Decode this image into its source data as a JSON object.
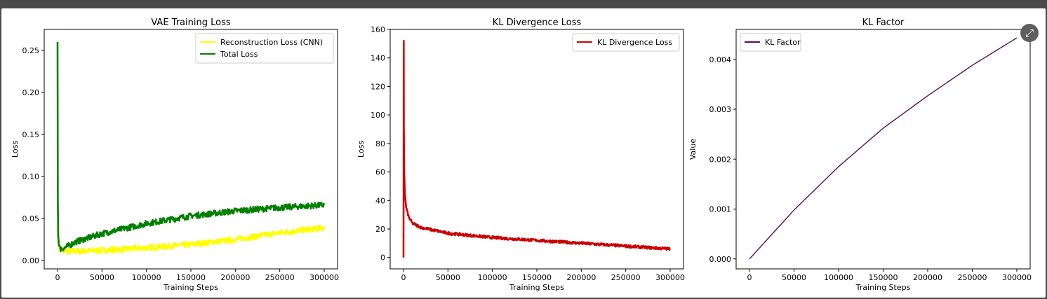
{
  "ui": {
    "expand_icon": "expand-icon",
    "expand_glyph": "⤢"
  },
  "chart_data": [
    {
      "type": "line",
      "title": "VAE Training Loss",
      "xlabel": "Training Steps",
      "ylabel": "Loss",
      "xlim": [
        -15000,
        315000
      ],
      "ylim": [
        -0.01,
        0.275
      ],
      "xticks": [
        0,
        50000,
        100000,
        150000,
        200000,
        250000,
        300000
      ],
      "xtick_labels": [
        "0",
        "50000",
        "100000",
        "150000",
        "200000",
        "250000",
        "300000"
      ],
      "yticks": [
        0.0,
        0.05,
        0.1,
        0.15,
        0.2,
        0.25
      ],
      "ytick_labels": [
        "0.00",
        "0.05",
        "0.10",
        "0.15",
        "0.20",
        "0.25"
      ],
      "legend": "top-right",
      "grid": false,
      "series": [
        {
          "name": "Reconstruction Loss (CNN)",
          "color": "#ffff00",
          "noise": 0.0035,
          "x": [
            0,
            1000,
            3000,
            8000,
            20000,
            50000,
            100000,
            150000,
            200000,
            250000,
            300000
          ],
          "y": [
            0.04,
            0.02,
            0.013,
            0.011,
            0.011,
            0.012,
            0.015,
            0.019,
            0.025,
            0.033,
            0.039
          ]
        },
        {
          "name": "Total Loss",
          "color": "#008000",
          "noise": 0.0035,
          "x": [
            0,
            300,
            800,
            1500,
            3000,
            8000,
            20000,
            50000,
            100000,
            150000,
            200000,
            250000,
            300000
          ],
          "y": [
            0.26,
            0.07,
            0.03,
            0.018,
            0.014,
            0.015,
            0.022,
            0.032,
            0.044,
            0.053,
            0.059,
            0.063,
            0.066
          ]
        }
      ]
    },
    {
      "type": "line",
      "title": "KL Divergence Loss",
      "xlabel": "Training Steps",
      "ylabel": "Loss",
      "xlim": [
        -15000,
        315000
      ],
      "ylim": [
        -8,
        160
      ],
      "xticks": [
        0,
        50000,
        100000,
        150000,
        200000,
        250000,
        300000
      ],
      "xtick_labels": [
        "0",
        "50000",
        "100000",
        "150000",
        "200000",
        "250000",
        "300000"
      ],
      "yticks": [
        0,
        20,
        40,
        60,
        80,
        100,
        120,
        140,
        160
      ],
      "ytick_labels": [
        "0",
        "20",
        "40",
        "60",
        "80",
        "100",
        "120",
        "140",
        "160"
      ],
      "legend": "top-right",
      "grid": false,
      "series": [
        {
          "name": "KL Divergence Loss",
          "color": "#cc0000",
          "noise": 1.0,
          "x": [
            0,
            200,
            400,
            800,
            1500,
            3000,
            6000,
            10000,
            20000,
            50000,
            100000,
            150000,
            200000,
            250000,
            300000
          ],
          "y": [
            0,
            152,
            90,
            60,
            45,
            35,
            28,
            24,
            21,
            17,
            14,
            12,
            10,
            8,
            6
          ]
        }
      ]
    },
    {
      "type": "line",
      "title": "KL Factor",
      "xlabel": "Training Steps",
      "ylabel": "Value",
      "xlim": [
        -15000,
        315000
      ],
      "ylim": [
        -0.0002,
        0.0046
      ],
      "xticks": [
        0,
        50000,
        100000,
        150000,
        200000,
        250000,
        300000
      ],
      "xtick_labels": [
        "0",
        "50000",
        "100000",
        "150000",
        "200000",
        "250000",
        "300000"
      ],
      "yticks": [
        0,
        0.001,
        0.002,
        0.003,
        0.004
      ],
      "ytick_labels": [
        "0.000",
        "0.001",
        "0.002",
        "0.003",
        "0.004"
      ],
      "legend": "top-left",
      "grid": false,
      "series": [
        {
          "name": "KL Factor",
          "color": "#5a0f5a",
          "noise": 0,
          "x": [
            0,
            50000,
            100000,
            150000,
            200000,
            250000,
            300000
          ],
          "y": [
            0,
            0.00098,
            0.00185,
            0.00262,
            0.00327,
            0.00388,
            0.00443
          ]
        }
      ]
    }
  ]
}
